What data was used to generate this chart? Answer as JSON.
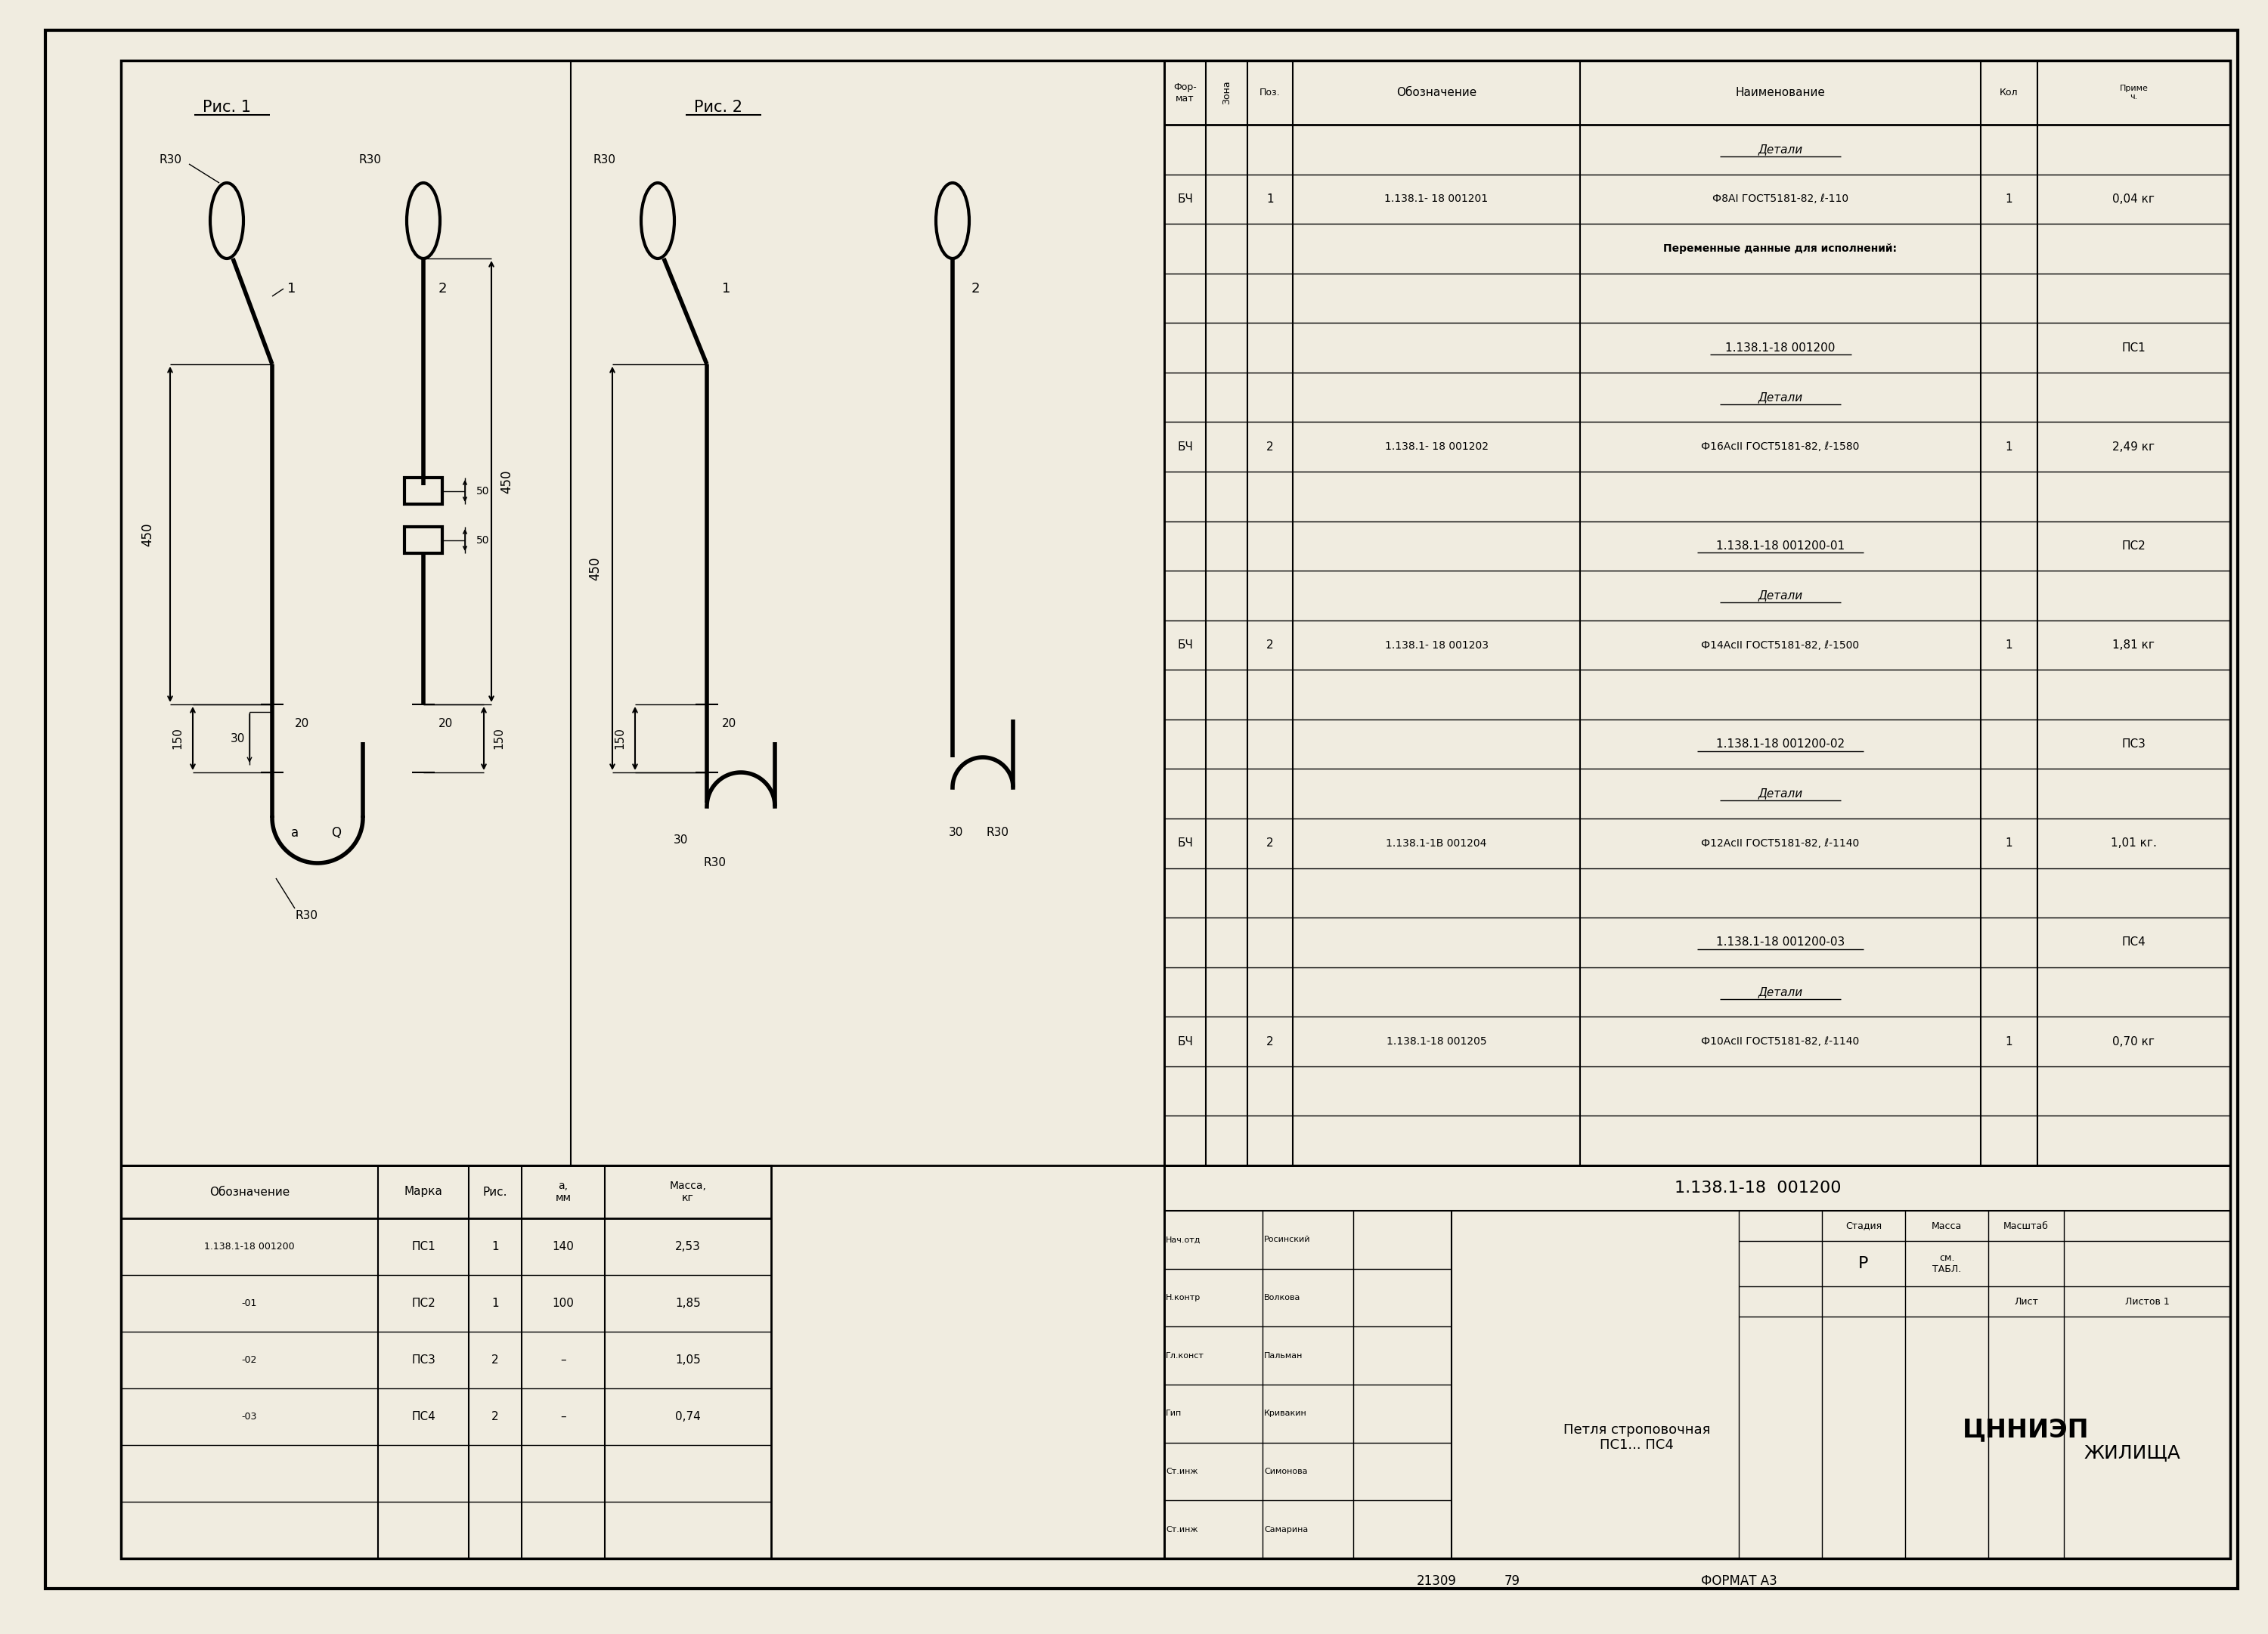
{
  "bg_color": "#f0ece0",
  "line_color": "#000000",
  "title": "1.138.1-18  001200",
  "drawing_title": "Петля строповочная\nПС1... ПС4",
  "format_text": "ФОРМАТ А3",
  "stamp_number": "21309",
  "stamp_year": "79",
  "stage": "Р",
  "personnel": [
    [
      "Нач.отд",
      "Росинский"
    ],
    [
      "Н.контр",
      "Волкова"
    ],
    [
      "Гл.конст",
      "Пальман"
    ],
    [
      "Гип",
      "Кривакин"
    ],
    [
      "Ст.инж",
      "Симонова"
    ],
    [
      "Ст.инж",
      "Самарина"
    ]
  ],
  "bom_rows": [
    [
      "",
      "",
      "",
      "",
      "Детали",
      "",
      ""
    ],
    [
      "БЧ",
      "",
      "1",
      "1.138.1- 18 001201",
      "Ф8АI ГОСТ5181-82, ℓ-110",
      "1",
      "0,04 кг"
    ],
    [
      "",
      "",
      "",
      "",
      "Переменные данные для исполнений:",
      "",
      ""
    ],
    [
      "",
      "",
      "",
      "",
      "",
      "",
      ""
    ],
    [
      "",
      "",
      "",
      "",
      "1.138.1-18 001200",
      "",
      "ПС1"
    ],
    [
      "",
      "",
      "",
      "",
      "Детали",
      "",
      ""
    ],
    [
      "БЧ",
      "",
      "2",
      "1.138.1- 18 001202",
      "Ф16АсII ГОСТ5181-82, ℓ-1580",
      "1",
      "2,49 кг"
    ],
    [
      "",
      "",
      "",
      "",
      "",
      "",
      ""
    ],
    [
      "",
      "",
      "",
      "",
      "1.138.1-18 001200-01",
      "",
      "ПС2"
    ],
    [
      "",
      "",
      "",
      "",
      "Детали",
      "",
      ""
    ],
    [
      "БЧ",
      "",
      "2",
      "1.138.1- 18 001203",
      "Ф14АсII ГОСТ5181-82, ℓ-1500",
      "1",
      "1,81 кг"
    ],
    [
      "",
      "",
      "",
      "",
      "",
      "",
      ""
    ],
    [
      "",
      "",
      "",
      "",
      "1.138.1-18 001200-02",
      "",
      "ПС3"
    ],
    [
      "",
      "",
      "",
      "",
      "Детали",
      "",
      ""
    ],
    [
      "БЧ",
      "",
      "2",
      "1.138.1-1В 001204",
      "Ф12АсII ГОСТ5181-82, ℓ-1140",
      "1",
      "1,01 кг."
    ],
    [
      "",
      "",
      "",
      "",
      "",
      "",
      ""
    ],
    [
      "",
      "",
      "",
      "",
      "1.138.1-18 001200-03",
      "",
      "ПС4"
    ],
    [
      "",
      "",
      "",
      "",
      "Детали",
      "",
      ""
    ],
    [
      "БЧ",
      "",
      "2",
      "1.138.1-18 001205",
      "Ф10АсII ГОСТ5181-82, ℓ-1140",
      "1",
      "0,70 кг"
    ],
    [
      "",
      "",
      "",
      "",
      "",
      "",
      ""
    ],
    [
      "",
      "",
      "",
      "",
      "",
      "",
      ""
    ]
  ],
  "var_table_rows": [
    [
      "1.138.1-18 001200",
      "ПС1",
      "1",
      "140",
      "2,53"
    ],
    [
      "-01",
      "ПС2",
      "1",
      "100",
      "1,85"
    ],
    [
      "-02",
      "ПС3",
      "2",
      "–",
      "1,05"
    ],
    [
      "-03",
      "ПС4",
      "2",
      "–",
      "0,74"
    ],
    [
      "",
      "",
      "",
      "",
      ""
    ],
    [
      "",
      "",
      "",
      "",
      ""
    ]
  ]
}
